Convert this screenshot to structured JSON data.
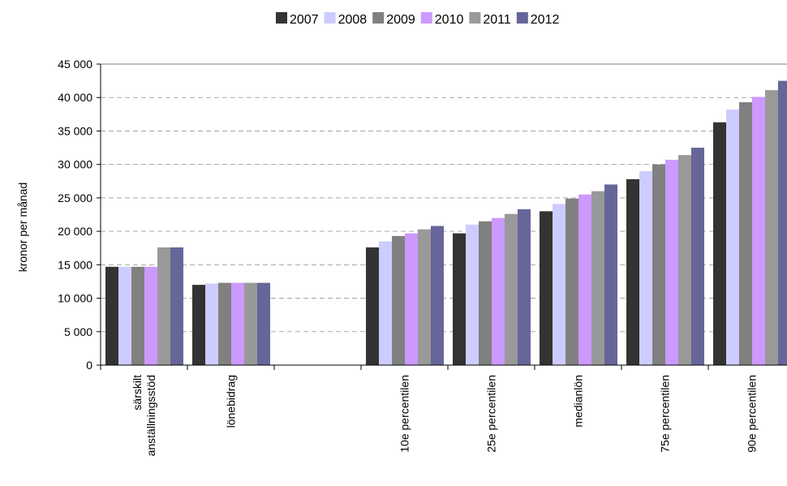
{
  "chart_data": {
    "type": "bar",
    "title": "",
    "xlabel": "",
    "ylabel": "kronor per månad",
    "ylim": [
      0,
      45000
    ],
    "yticks": [
      0,
      5000,
      10000,
      15000,
      20000,
      25000,
      30000,
      35000,
      40000,
      45000
    ],
    "ytick_labels": [
      "0",
      "5 000",
      "10 000",
      "15 000",
      "20 000",
      "25 000",
      "30 000",
      "35 000",
      "40 000",
      "45 000"
    ],
    "grid": true,
    "legend_position": "top",
    "categories": [
      [
        "särskilt",
        "anställningsstöd"
      ],
      [
        "lönebidrag"
      ],
      [
        ""
      ],
      [
        "10e percentilen"
      ],
      [
        "25e percentilen"
      ],
      [
        "medianlön"
      ],
      [
        "75e percentilen"
      ],
      [
        "90e percentilen"
      ]
    ],
    "series": [
      {
        "name": "2007",
        "color": "#333333",
        "values": [
          14700,
          12000,
          null,
          17600,
          19700,
          23000,
          27800,
          36300
        ]
      },
      {
        "name": "2008",
        "color": "#ccccff",
        "values": [
          14700,
          12200,
          null,
          18500,
          21000,
          24100,
          29000,
          38200
        ]
      },
      {
        "name": "2009",
        "color": "#808080",
        "values": [
          14700,
          12300,
          null,
          19300,
          21500,
          24900,
          30000,
          39300
        ]
      },
      {
        "name": "2010",
        "color": "#cc99ff",
        "values": [
          14700,
          12300,
          null,
          19700,
          22000,
          25500,
          30700,
          40100
        ]
      },
      {
        "name": "2011",
        "color": "#999999",
        "values": [
          17600,
          12300,
          null,
          20300,
          22600,
          26000,
          31400,
          41100
        ]
      },
      {
        "name": "2012",
        "color": "#666699",
        "values": [
          17600,
          12300,
          null,
          20800,
          23300,
          27000,
          32500,
          42500
        ]
      }
    ]
  }
}
